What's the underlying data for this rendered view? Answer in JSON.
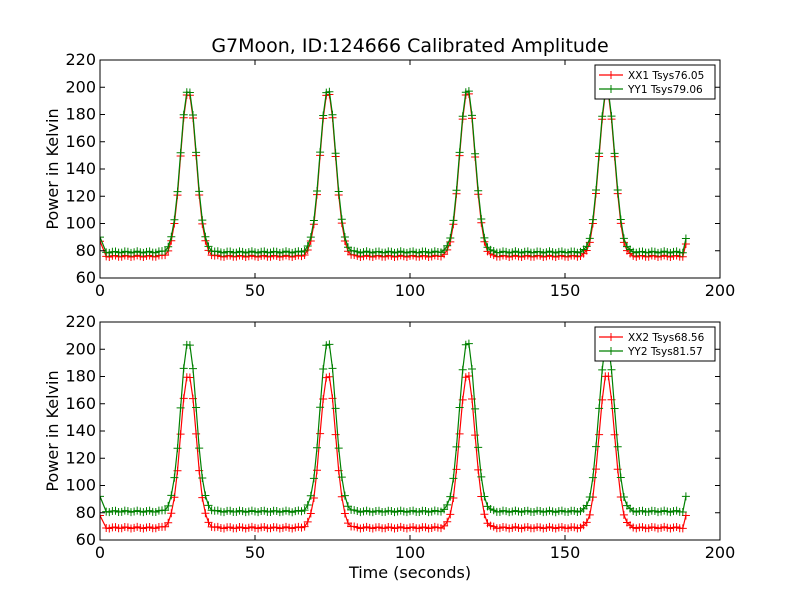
{
  "title": "G7Moon, ID:124666 Calibrated Amplitude",
  "xlabel": "Time (seconds)",
  "ylabel": "Power in Kelvin",
  "colors": {
    "red": "#ff0000",
    "green": "#008000"
  },
  "chart_data": [
    {
      "type": "line",
      "title": "G7Moon, ID:124666 Calibrated Amplitude",
      "xlabel": "",
      "ylabel": "Power in Kelvin",
      "xlim": [
        0,
        200
      ],
      "ylim": [
        60,
        220
      ],
      "xticks": [
        0,
        50,
        100,
        150,
        200
      ],
      "yticks": [
        60,
        80,
        100,
        120,
        140,
        160,
        180,
        200,
        220
      ],
      "grid": false,
      "legend": "top-right",
      "marker": "+",
      "series": [
        {
          "name": "XX1 Tsys76.05",
          "color": "#ff0000",
          "baseline": 76,
          "peak": 197,
          "peak_times": [
            28.5,
            73.5,
            118.5,
            163.5
          ],
          "peak_width": 2.5,
          "start": [
            0,
            87
          ],
          "end": [
            189,
            85
          ],
          "time_range": [
            2,
            188
          ]
        },
        {
          "name": "YY1 Tsys79.06",
          "color": "#008000",
          "baseline": 79,
          "peak": 199,
          "peak_times": [
            28.5,
            73.5,
            118.5,
            163.5
          ],
          "peak_width": 2.5,
          "start": [
            0,
            90
          ],
          "end": [
            189,
            89
          ],
          "time_range": [
            2,
            188
          ]
        }
      ]
    },
    {
      "type": "line",
      "title": "",
      "xlabel": "Time (seconds)",
      "ylabel": "Power in Kelvin",
      "xlim": [
        0,
        200
      ],
      "ylim": [
        60,
        220
      ],
      "xticks": [
        0,
        50,
        100,
        150,
        200
      ],
      "yticks": [
        60,
        80,
        100,
        120,
        140,
        160,
        180,
        200,
        220
      ],
      "grid": false,
      "legend": "top-right",
      "marker": "+",
      "series": [
        {
          "name": "XX2 Tsys68.56",
          "color": "#ff0000",
          "baseline": 69,
          "peak": 182,
          "peak_times": [
            28.5,
            73.5,
            118.5,
            163.5
          ],
          "peak_width": 2.5,
          "start": [
            0,
            78
          ],
          "end": [
            189,
            78
          ],
          "time_range": [
            2,
            188
          ]
        },
        {
          "name": "YY2 Tsys81.57",
          "color": "#008000",
          "baseline": 81,
          "peak": 206,
          "peak_times": [
            28.5,
            73.5,
            118.5,
            163.5
          ],
          "peak_width": 2.5,
          "start": [
            0,
            92
          ],
          "end": [
            189,
            92
          ],
          "time_range": [
            2,
            188
          ]
        }
      ]
    }
  ]
}
